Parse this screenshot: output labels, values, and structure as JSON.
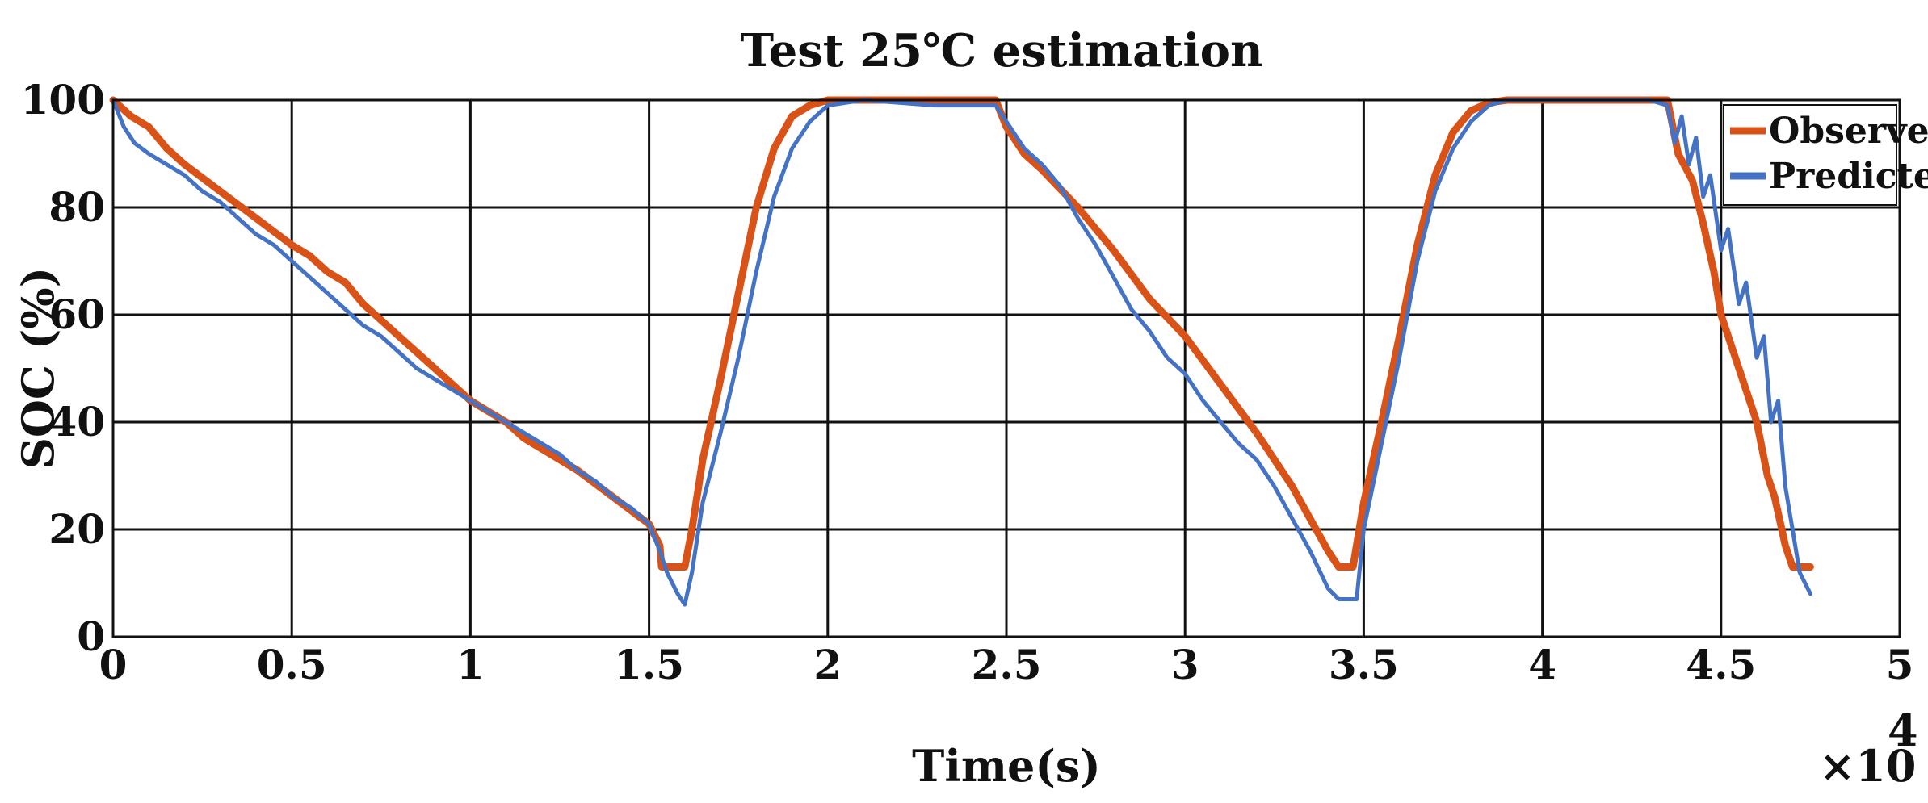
{
  "chart_data": {
    "type": "line",
    "title": "Test 25℃ estimation",
    "xlabel": "Time(s)",
    "ylabel": "SOC (%)",
    "x_multiplier_label": "×10",
    "x_multiplier_exponent": "4",
    "xlim": [
      0,
      5
    ],
    "ylim": [
      0,
      100
    ],
    "xticks": [
      0,
      0.5,
      1,
      1.5,
      2,
      2.5,
      3,
      3.5,
      4,
      4.5,
      5
    ],
    "xtick_labels": [
      "0",
      "0.5",
      "1",
      "1.5",
      "2",
      "2.5",
      "3",
      "3.5",
      "4",
      "4.5",
      "5"
    ],
    "yticks": [
      0,
      20,
      40,
      60,
      80,
      100
    ],
    "ytick_labels": [
      "0",
      "20",
      "40",
      "60",
      "80",
      "100"
    ],
    "grid": true,
    "legend_position": "top-right",
    "series": [
      {
        "name": "Observed",
        "color": "#D95319",
        "x": [
          0,
          0.05,
          0.1,
          0.15,
          0.2,
          0.3,
          0.4,
          0.5,
          0.55,
          0.6,
          0.65,
          0.7,
          0.75,
          0.8,
          0.85,
          0.9,
          0.95,
          1.0,
          1.05,
          1.1,
          1.15,
          1.2,
          1.3,
          1.4,
          1.5,
          1.53,
          1.535,
          1.6,
          1.62,
          1.65,
          1.7,
          1.75,
          1.8,
          1.85,
          1.9,
          1.95,
          2.0,
          2.05,
          2.1,
          2.2,
          2.3,
          2.4,
          2.47,
          2.5,
          2.55,
          2.6,
          2.7,
          2.8,
          2.9,
          3.0,
          3.1,
          3.2,
          3.3,
          3.35,
          3.4,
          3.43,
          3.47,
          3.5,
          3.55,
          3.6,
          3.65,
          3.7,
          3.75,
          3.8,
          3.85,
          3.9,
          3.95,
          4.0,
          4.1,
          4.2,
          4.3,
          4.35,
          4.38,
          4.42,
          4.45,
          4.48,
          4.5,
          4.55,
          4.6,
          4.63,
          4.65,
          4.68,
          4.7,
          4.75
        ],
        "y": [
          100,
          97,
          95,
          91,
          88,
          83,
          78,
          73,
          71,
          68,
          66,
          62,
          59,
          56,
          53,
          50,
          47,
          44,
          42,
          40,
          37,
          35,
          31,
          26,
          21,
          17,
          13,
          13,
          20,
          33,
          48,
          64,
          80,
          91,
          97,
          99,
          100,
          100,
          100,
          100,
          100,
          100,
          100,
          95,
          90,
          87,
          80,
          72,
          63,
          56,
          47,
          38,
          28,
          22,
          16,
          13,
          13,
          25,
          40,
          56,
          73,
          86,
          94,
          98,
          99.5,
          100,
          100,
          100,
          100,
          100,
          100,
          100,
          90,
          85,
          77,
          68,
          60,
          50,
          40,
          30,
          26,
          17,
          13,
          13
        ]
      },
      {
        "name": "Predicted",
        "color": "#4472C4",
        "x": [
          0,
          0.03,
          0.06,
          0.1,
          0.15,
          0.2,
          0.25,
          0.3,
          0.35,
          0.4,
          0.45,
          0.5,
          0.55,
          0.6,
          0.65,
          0.7,
          0.75,
          0.8,
          0.85,
          0.9,
          0.95,
          1.0,
          1.05,
          1.1,
          1.15,
          1.2,
          1.25,
          1.3,
          1.35,
          1.4,
          1.45,
          1.5,
          1.53,
          1.55,
          1.58,
          1.6,
          1.62,
          1.65,
          1.7,
          1.75,
          1.8,
          1.85,
          1.9,
          1.95,
          2.0,
          2.05,
          2.1,
          2.2,
          2.3,
          2.4,
          2.47,
          2.5,
          2.55,
          2.6,
          2.65,
          2.7,
          2.75,
          2.8,
          2.85,
          2.9,
          2.95,
          3.0,
          3.05,
          3.1,
          3.15,
          3.2,
          3.25,
          3.3,
          3.35,
          3.4,
          3.43,
          3.46,
          3.48,
          3.5,
          3.55,
          3.6,
          3.65,
          3.7,
          3.75,
          3.8,
          3.85,
          3.9,
          3.95,
          4.0,
          4.1,
          4.2,
          4.3,
          4.35,
          4.37,
          4.39,
          4.41,
          4.43,
          4.45,
          4.47,
          4.5,
          4.52,
          4.55,
          4.57,
          4.6,
          4.62,
          4.64,
          4.66,
          4.68,
          4.7,
          4.72,
          4.75
        ],
        "y": [
          100,
          95,
          92,
          90,
          88,
          86,
          83,
          81,
          78,
          75,
          73,
          70,
          67,
          64,
          61,
          58,
          56,
          53,
          50,
          48,
          46,
          44,
          42,
          40,
          38,
          36,
          34,
          31,
          29,
          26,
          24,
          21,
          16,
          12,
          8,
          6,
          12,
          25,
          38,
          52,
          68,
          82,
          91,
          96,
          99,
          99.5,
          100,
          99.5,
          99,
          99,
          99,
          96,
          91,
          88,
          84,
          78,
          73,
          67,
          61,
          57,
          52,
          49,
          44,
          40,
          36,
          33,
          28,
          22,
          16,
          9,
          7,
          7,
          7,
          20,
          36,
          52,
          70,
          83,
          91,
          96,
          99,
          100,
          100,
          100,
          100,
          100,
          100,
          99,
          92,
          97,
          88,
          93,
          82,
          86,
          72,
          76,
          62,
          66,
          52,
          56,
          40,
          44,
          28,
          20,
          12,
          8
        ]
      }
    ]
  }
}
